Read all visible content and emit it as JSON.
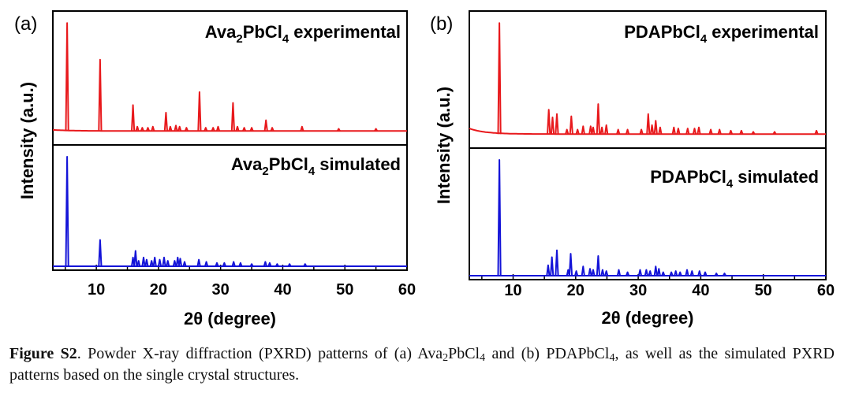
{
  "chart_data": [
    {
      "type": "line",
      "panel_label": "(a)",
      "xlabel": "2θ (degree)",
      "ylabel": "Intensity (a.u.)",
      "xlim": [
        3,
        60
      ],
      "xticks": [
        10,
        20,
        30,
        40,
        50,
        60
      ],
      "series": [
        {
          "name": "Ava₂PbCl₄ experimental",
          "label_main": "Ava",
          "label_sub1": "2",
          "label_mid": "PbCl",
          "label_sub2": "4",
          "label_tail": " experimental",
          "color": "#e8191c",
          "baseline": 0.02,
          "peaks": [
            [
              5.3,
              1.0
            ],
            [
              10.6,
              0.66
            ],
            [
              15.9,
              0.24
            ],
            [
              16.6,
              0.04
            ],
            [
              17.4,
              0.03
            ],
            [
              18.3,
              0.03
            ],
            [
              19.1,
              0.04
            ],
            [
              21.2,
              0.17
            ],
            [
              21.9,
              0.04
            ],
            [
              22.8,
              0.05
            ],
            [
              23.4,
              0.04
            ],
            [
              24.5,
              0.03
            ],
            [
              26.6,
              0.36
            ],
            [
              27.6,
              0.03
            ],
            [
              28.8,
              0.03
            ],
            [
              29.6,
              0.04
            ],
            [
              32.0,
              0.26
            ],
            [
              32.7,
              0.04
            ],
            [
              33.8,
              0.03
            ],
            [
              35.0,
              0.03
            ],
            [
              37.3,
              0.1
            ],
            [
              38.3,
              0.03
            ],
            [
              43.1,
              0.04
            ],
            [
              49.0,
              0.02
            ],
            [
              55.0,
              0.02
            ]
          ]
        },
        {
          "name": "Ava₂PbCl₄ simulated",
          "label_main": "Ava",
          "label_sub1": "2",
          "label_mid": "PbCl",
          "label_sub2": "4",
          "label_tail": " simulated",
          "color": "#1414d8",
          "baseline": 0.0,
          "peaks": [
            [
              5.3,
              1.0
            ],
            [
              10.6,
              0.24
            ],
            [
              15.9,
              0.08
            ],
            [
              16.3,
              0.14
            ],
            [
              16.8,
              0.05
            ],
            [
              17.6,
              0.08
            ],
            [
              18.1,
              0.06
            ],
            [
              18.9,
              0.05
            ],
            [
              19.4,
              0.08
            ],
            [
              20.2,
              0.06
            ],
            [
              20.9,
              0.08
            ],
            [
              21.5,
              0.05
            ],
            [
              22.6,
              0.05
            ],
            [
              23.1,
              0.08
            ],
            [
              23.5,
              0.07
            ],
            [
              24.2,
              0.04
            ],
            [
              26.5,
              0.06
            ],
            [
              27.7,
              0.04
            ],
            [
              29.4,
              0.03
            ],
            [
              30.6,
              0.03
            ],
            [
              32.1,
              0.04
            ],
            [
              33.2,
              0.03
            ],
            [
              35.0,
              0.02
            ],
            [
              37.2,
              0.04
            ],
            [
              37.9,
              0.03
            ],
            [
              39.1,
              0.02
            ],
            [
              41.1,
              0.02
            ],
            [
              43.6,
              0.02
            ]
          ]
        }
      ]
    },
    {
      "type": "line",
      "panel_label": "(b)",
      "xlabel": "2θ (degree)",
      "ylabel": "Intensity (a.u.)",
      "xlim": [
        3,
        60
      ],
      "xticks": [
        10,
        20,
        30,
        40,
        50,
        60
      ],
      "series": [
        {
          "name": "PDAPbCl₄ experimental",
          "label_main": "PDAPbCl",
          "label_sub1": "4",
          "label_mid": "",
          "label_sub2": "",
          "label_tail": " experimental",
          "color": "#e8191c",
          "baseline": 0.02,
          "peaks": [
            [
              7.8,
              1.0
            ],
            [
              15.7,
              0.22
            ],
            [
              16.3,
              0.15
            ],
            [
              17.0,
              0.18
            ],
            [
              18.6,
              0.04
            ],
            [
              19.3,
              0.16
            ],
            [
              20.3,
              0.04
            ],
            [
              21.2,
              0.07
            ],
            [
              22.4,
              0.07
            ],
            [
              22.8,
              0.06
            ],
            [
              23.6,
              0.27
            ],
            [
              24.2,
              0.06
            ],
            [
              24.9,
              0.08
            ],
            [
              26.8,
              0.04
            ],
            [
              28.3,
              0.04
            ],
            [
              30.5,
              0.04
            ],
            [
              31.6,
              0.18
            ],
            [
              32.2,
              0.08
            ],
            [
              32.8,
              0.12
            ],
            [
              33.5,
              0.06
            ],
            [
              35.7,
              0.06
            ],
            [
              36.4,
              0.05
            ],
            [
              37.9,
              0.05
            ],
            [
              39.0,
              0.05
            ],
            [
              39.7,
              0.06
            ],
            [
              41.6,
              0.04
            ],
            [
              43.0,
              0.04
            ],
            [
              44.8,
              0.03
            ],
            [
              46.5,
              0.03
            ],
            [
              48.4,
              0.02
            ],
            [
              51.8,
              0.02
            ],
            [
              58.5,
              0.03
            ]
          ]
        },
        {
          "name": "PDAPbCl₄ simulated",
          "label_main": "PDAPbCl",
          "label_sub1": "4",
          "label_mid": "",
          "label_sub2": "",
          "label_tail": " simulated",
          "color": "#1414d8",
          "baseline": 0.0,
          "peaks": [
            [
              7.8,
              1.0
            ],
            [
              15.6,
              0.09
            ],
            [
              16.2,
              0.16
            ],
            [
              17.0,
              0.22
            ],
            [
              18.8,
              0.05
            ],
            [
              19.2,
              0.19
            ],
            [
              20.1,
              0.04
            ],
            [
              21.2,
              0.08
            ],
            [
              22.3,
              0.06
            ],
            [
              22.8,
              0.05
            ],
            [
              23.6,
              0.17
            ],
            [
              24.3,
              0.05
            ],
            [
              24.9,
              0.04
            ],
            [
              26.9,
              0.05
            ],
            [
              28.3,
              0.03
            ],
            [
              30.3,
              0.05
            ],
            [
              31.3,
              0.05
            ],
            [
              31.9,
              0.04
            ],
            [
              32.8,
              0.08
            ],
            [
              33.3,
              0.06
            ],
            [
              34.0,
              0.03
            ],
            [
              35.3,
              0.03
            ],
            [
              36.0,
              0.04
            ],
            [
              36.7,
              0.03
            ],
            [
              37.8,
              0.05
            ],
            [
              38.6,
              0.04
            ],
            [
              39.8,
              0.04
            ],
            [
              40.7,
              0.03
            ],
            [
              42.5,
              0.02
            ],
            [
              43.8,
              0.02
            ]
          ]
        }
      ]
    }
  ],
  "caption": {
    "label": "Figure S2",
    "text_1": ". Powder X-ray diffraction (PXRD) patterns of (a) Ava",
    "sub_1": "2",
    "text_2": "PbCl",
    "sub_2": "4",
    "text_3": " and (b) PDAPbCl",
    "sub_3": "4",
    "text_4": ", as well as the simulated PXRD patterns based on the single crystal structures."
  }
}
